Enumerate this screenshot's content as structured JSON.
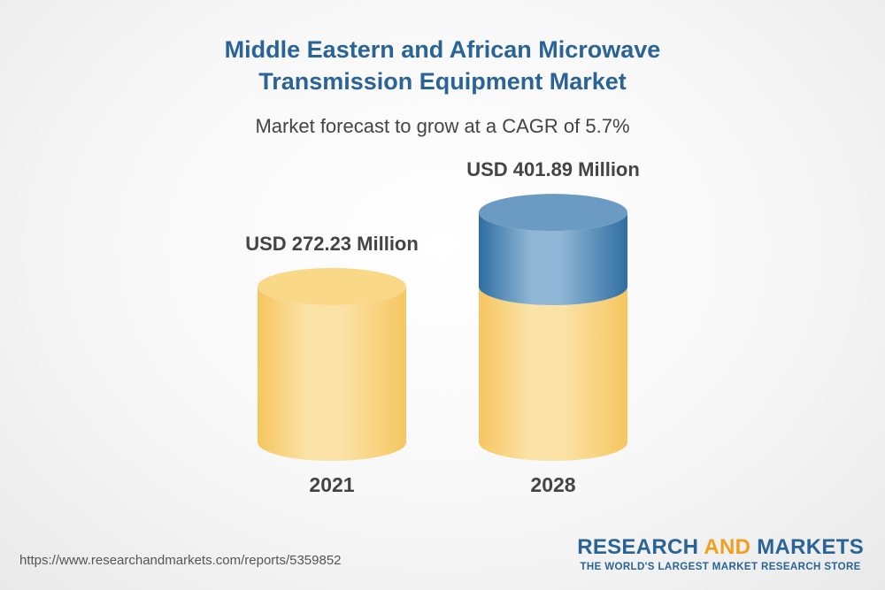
{
  "chart_data": {
    "type": "bar",
    "style": "3d-cylinder",
    "title_lines": [
      "Middle Eastern and African Microwave",
      "Transmission Equipment Market"
    ],
    "subtitle": "Market forecast to grow at a CAGR of 5.7%",
    "categories": [
      "2021",
      "2028"
    ],
    "values": [
      272.23,
      401.89
    ],
    "value_labels": [
      "USD 272.23 Million",
      "USD 401.89 Million"
    ],
    "unit": "USD Million",
    "colors": {
      "base": "#f6c660",
      "base_light": "#fbe3a8",
      "growth": "#2f6ea3",
      "growth_light": "#8fb6d4"
    }
  },
  "footer": {
    "url": "https://www.researchandmarkets.com/reports/5359852",
    "brand_part1": "RESEARCH ",
    "brand_part2": "AND",
    "brand_part3": " MARKETS",
    "tagline": "THE WORLD'S LARGEST MARKET RESEARCH STORE"
  }
}
